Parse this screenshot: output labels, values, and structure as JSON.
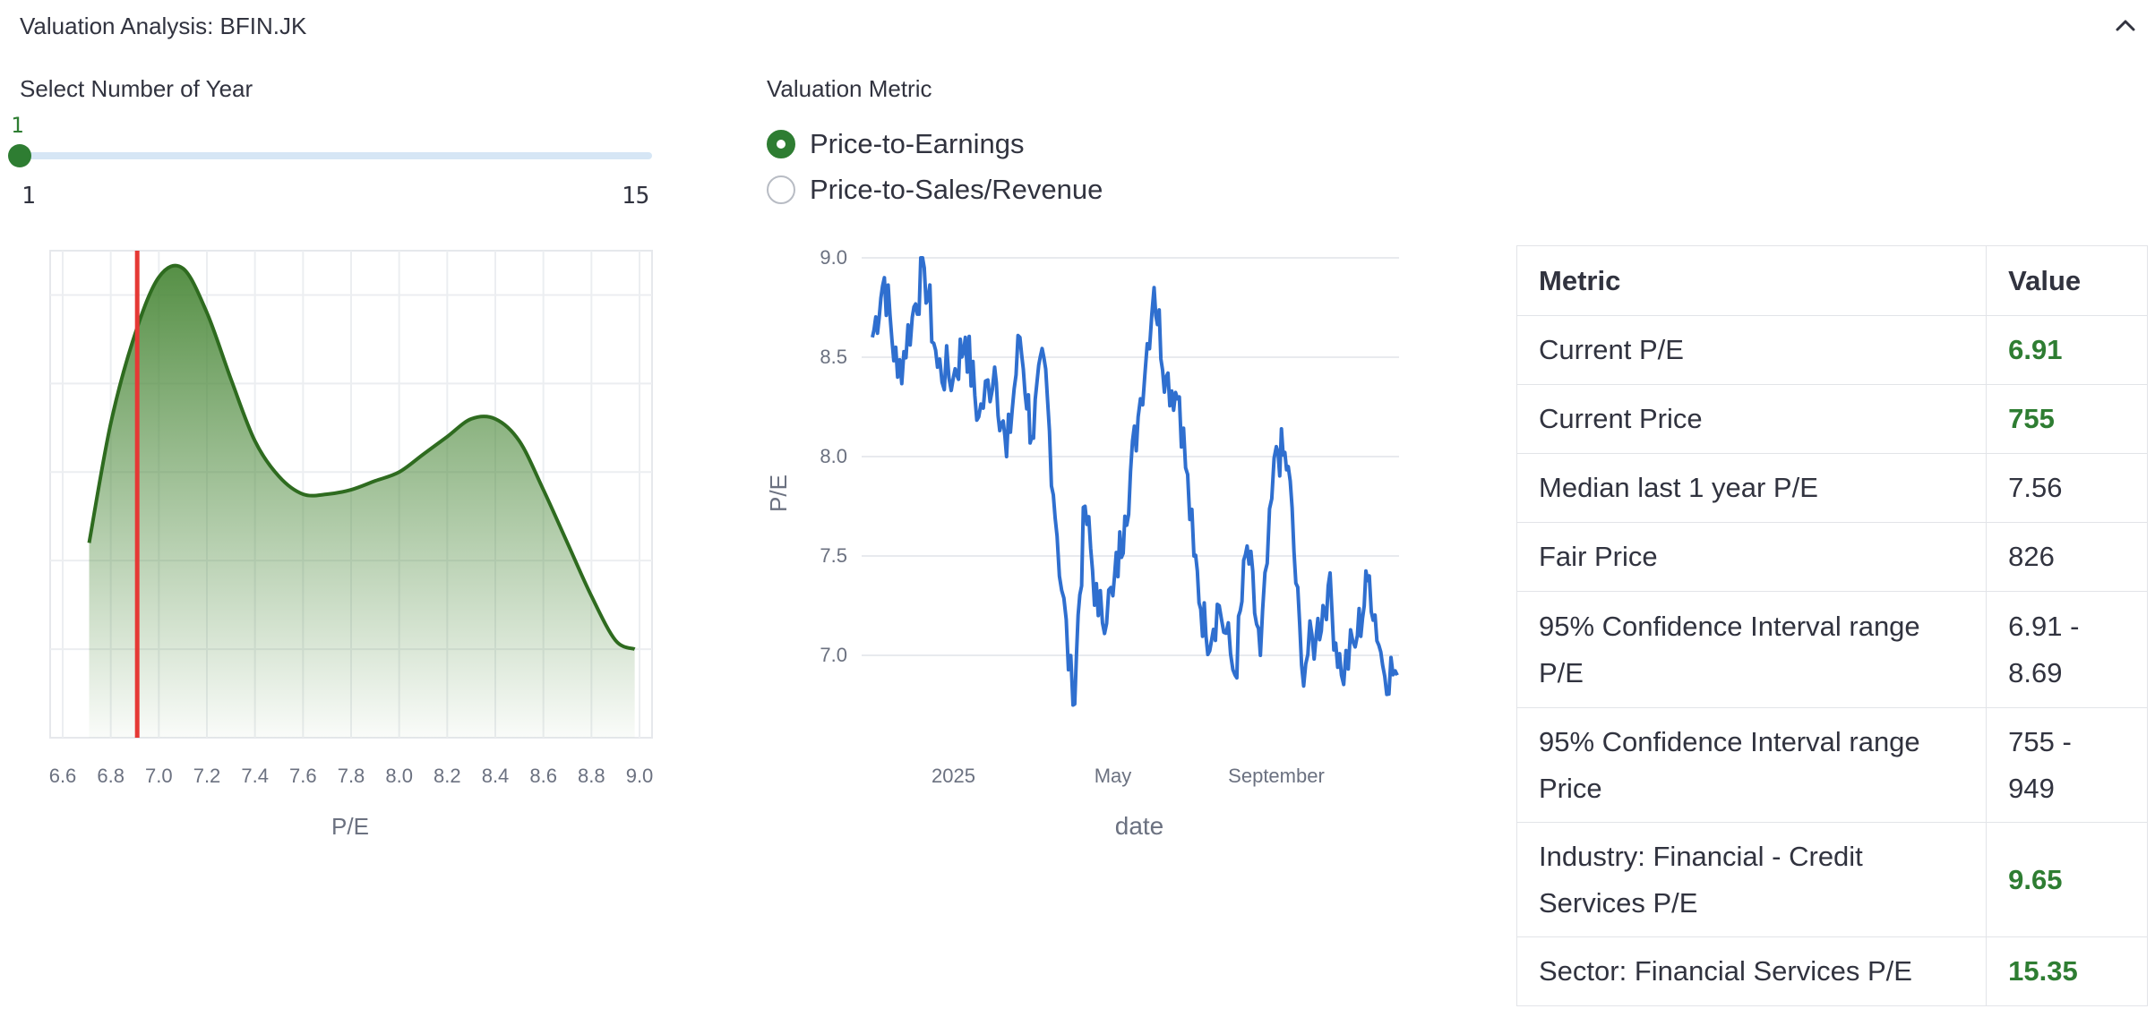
{
  "expander": {
    "title": "Valuation Analysis: BFIN.JK",
    "chevron_icon": "chevron-up-icon"
  },
  "slider": {
    "label": "Select Number of Year",
    "value": "1",
    "min": "1",
    "max": "15",
    "value_fraction": 0.0,
    "accent": "#2e7d32"
  },
  "radio": {
    "label": "Valuation Metric",
    "options": [
      {
        "label": "Price-to-Earnings",
        "selected": true
      },
      {
        "label": "Price-to-Sales/Revenue",
        "selected": false
      }
    ]
  },
  "density_chart": {
    "xlabel": "P/E",
    "xticks": [
      "6.6",
      "6.8",
      "7.0",
      "7.2",
      "7.4",
      "7.6",
      "7.8",
      "8.0",
      "8.2",
      "8.4",
      "8.6",
      "8.8",
      "9.0"
    ],
    "current_pe_marker": 6.91,
    "line_color": "#2e6b1f",
    "marker_color": "#e53935"
  },
  "line_chart": {
    "xlabel": "date",
    "ylabel": "P/E",
    "yticks": [
      "9.0",
      "8.5",
      "8.0",
      "7.5",
      "7.0"
    ],
    "xticks": [
      "2025",
      "May",
      "September"
    ],
    "line_color": "#2f6fcf"
  },
  "chart_data": [
    {
      "type": "area",
      "xlabel": "P/E",
      "xlim": [
        6.6,
        9.0
      ],
      "x": [
        6.71,
        6.8,
        6.9,
        7.0,
        7.1,
        7.2,
        7.3,
        7.4,
        7.5,
        7.6,
        7.7,
        7.8,
        7.9,
        8.0,
        8.1,
        8.2,
        8.3,
        8.4,
        8.5,
        8.6,
        8.7,
        8.8,
        8.9,
        8.98
      ],
      "values": [
        0.44,
        0.71,
        0.91,
        1.04,
        1.06,
        0.96,
        0.81,
        0.67,
        0.59,
        0.55,
        0.55,
        0.56,
        0.58,
        0.6,
        0.64,
        0.68,
        0.72,
        0.72,
        0.67,
        0.56,
        0.44,
        0.32,
        0.22,
        0.2
      ],
      "vline": 6.91
    },
    {
      "type": "line",
      "xlabel": "date",
      "ylabel": "P/E",
      "ylim": [
        6.7,
        9.0
      ],
      "x": [
        "2024-11-01",
        "2024-11-10",
        "2024-11-20",
        "2024-12-01",
        "2024-12-10",
        "2024-12-20",
        "2025-01-01",
        "2025-01-10",
        "2025-01-20",
        "2025-02-01",
        "2025-02-10",
        "2025-02-20",
        "2025-03-01",
        "2025-03-10",
        "2025-03-20",
        "2025-04-01",
        "2025-04-10",
        "2025-04-20",
        "2025-05-01",
        "2025-05-10",
        "2025-05-20",
        "2025-06-01",
        "2025-06-10",
        "2025-06-20",
        "2025-07-01",
        "2025-07-10",
        "2025-07-20",
        "2025-08-01",
        "2025-08-10",
        "2025-08-20",
        "2025-09-01",
        "2025-09-10",
        "2025-09-20",
        "2025-10-01",
        "2025-10-10",
        "2025-10-20",
        "2025-11-01",
        "2025-11-10",
        "2025-11-20",
        "2025-12-01"
      ],
      "values": [
        8.6,
        8.9,
        8.4,
        8.7,
        8.95,
        8.45,
        8.4,
        8.6,
        8.2,
        8.45,
        8.0,
        8.6,
        8.1,
        8.5,
        7.6,
        6.75,
        7.75,
        7.2,
        7.3,
        7.7,
        8.2,
        8.85,
        8.4,
        8.3,
        7.5,
        7.1,
        7.25,
        6.9,
        7.55,
        7.0,
        8.05,
        7.95,
        6.95,
        7.1,
        7.35,
        6.9,
        7.1,
        7.4,
        6.95,
        6.9
      ]
    }
  ],
  "table": {
    "headers": [
      "Metric",
      "Value"
    ],
    "rows": [
      {
        "metric": "Current P/E",
        "value": "6.91",
        "highlight": true
      },
      {
        "metric": "Current Price",
        "value": "755",
        "highlight": true
      },
      {
        "metric": "Median last 1 year P/E",
        "value": "7.56",
        "highlight": false
      },
      {
        "metric": "Fair Price",
        "value": "826",
        "highlight": false
      },
      {
        "metric": "95% Confidence Interval range P/E",
        "value": "6.91 - 8.69",
        "highlight": false
      },
      {
        "metric": "95% Confidence Interval range Price",
        "value": "755 - 949",
        "highlight": false
      },
      {
        "metric": "Industry: Financial - Credit Services P/E",
        "value": "9.65",
        "highlight": true
      },
      {
        "metric": "Sector: Financial Services P/E",
        "value": "15.35",
        "highlight": true
      }
    ],
    "highlight_color": "#2e7d32"
  }
}
